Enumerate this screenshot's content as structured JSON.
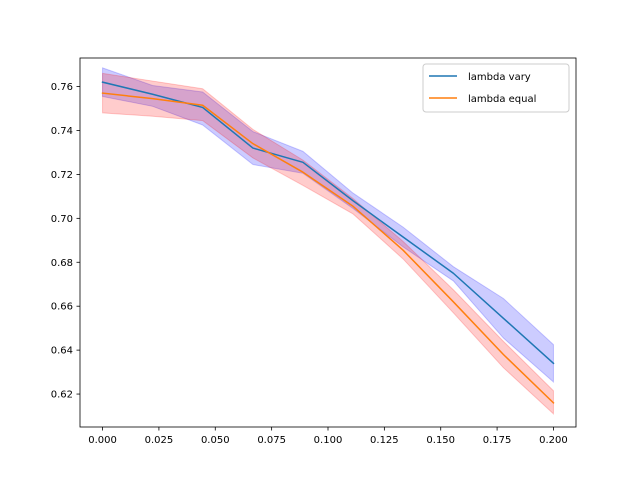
{
  "chart_data": {
    "type": "line",
    "title": "",
    "xlabel": "",
    "ylabel": "",
    "xlim": [
      -0.01,
      0.21
    ],
    "ylim": [
      0.605,
      0.773
    ],
    "x_ticks": [
      0.0,
      0.025,
      0.05,
      0.075,
      0.1,
      0.125,
      0.15,
      0.175,
      0.2
    ],
    "x_tick_labels": [
      "0.000",
      "0.025",
      "0.050",
      "0.075",
      "0.100",
      "0.125",
      "0.150",
      "0.175",
      "0.200"
    ],
    "y_ticks": [
      0.62,
      0.64,
      0.66,
      0.68,
      0.7,
      0.72,
      0.74,
      0.76
    ],
    "y_tick_labels": [
      "0.62",
      "0.64",
      "0.66",
      "0.68",
      "0.70",
      "0.72",
      "0.74",
      "0.76"
    ],
    "grid": false,
    "legend_position": "top-right",
    "x": [
      0.0,
      0.0222,
      0.0444,
      0.0667,
      0.0889,
      0.1111,
      0.1333,
      0.1556,
      0.1778,
      0.2
    ],
    "series": [
      {
        "name": "lambda vary",
        "color": "#1f77b4",
        "band_color": "#0000ff",
        "values": [
          0.762,
          0.7565,
          0.7505,
          0.732,
          0.7255,
          0.708,
          0.6915,
          0.675,
          0.6545,
          0.634
        ],
        "lower": [
          0.7555,
          0.751,
          0.7425,
          0.7245,
          0.7205,
          0.7045,
          0.687,
          0.6715,
          0.6455,
          0.6255
        ],
        "upper": [
          0.7685,
          0.7605,
          0.7575,
          0.7395,
          0.7305,
          0.7115,
          0.696,
          0.678,
          0.6635,
          0.6425
        ]
      },
      {
        "name": "lambda equal",
        "color": "#ff7f0e",
        "band_color": "#ff0000",
        "values": [
          0.757,
          0.7545,
          0.7515,
          0.734,
          0.721,
          0.7055,
          0.6855,
          0.662,
          0.638,
          0.616
        ],
        "lower": [
          0.748,
          0.7465,
          0.7445,
          0.7275,
          0.715,
          0.702,
          0.6815,
          0.657,
          0.632,
          0.611
        ],
        "upper": [
          0.766,
          0.7625,
          0.759,
          0.7405,
          0.7265,
          0.709,
          0.6895,
          0.6675,
          0.644,
          0.6215
        ]
      }
    ]
  }
}
